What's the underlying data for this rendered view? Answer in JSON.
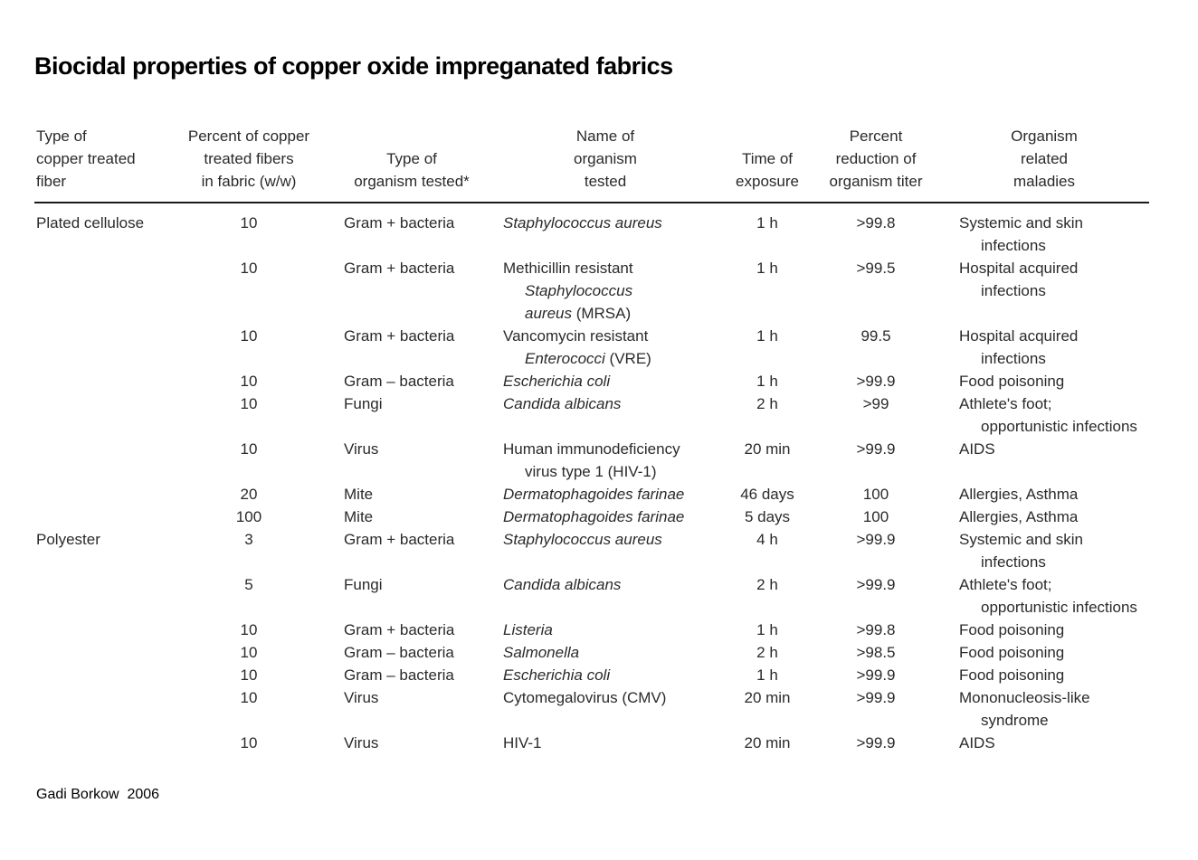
{
  "page": {
    "title": "Biocidal properties of copper oxide impreganated fabrics",
    "credit": "Gadi Borkow  2006"
  },
  "table": {
    "columns": [
      {
        "label": "Type of\ncopper treated\nfiber",
        "align": "left"
      },
      {
        "label": "Percent of copper\ntreated fibers\nin fabric (w/w)",
        "align": "center"
      },
      {
        "label": "Type of\norganism tested*",
        "align": "center"
      },
      {
        "label": "Name of\norganism\ntested",
        "align": "center"
      },
      {
        "label": "Time of\nexposure",
        "align": "center"
      },
      {
        "label": "Percent\nreduction of\norganism titer",
        "align": "center"
      },
      {
        "label": "Organism\nrelated\nmaladies",
        "align": "center"
      }
    ],
    "rows": [
      {
        "fiber": "Plated cellulose",
        "percent_copper": "10",
        "organism_type": "Gram + bacteria",
        "organism_name": [
          [
            {
              "t": "Staphylococcus aureus",
              "i": true
            }
          ]
        ],
        "time": "1 h",
        "reduction": ">99.8",
        "maladies": [
          "Systemic and skin",
          "infections"
        ]
      },
      {
        "fiber": "",
        "percent_copper": "10",
        "organism_type": "Gram + bacteria",
        "organism_name": [
          [
            {
              "t": "Methicillin resistant",
              "i": false
            }
          ],
          [
            {
              "t": "Staphylococcus",
              "i": true
            }
          ],
          [
            {
              "t": "aureus",
              "i": true
            },
            {
              "t": " (MRSA)",
              "i": false
            }
          ]
        ],
        "time": "1 h",
        "reduction": ">99.5",
        "maladies": [
          "Hospital acquired",
          "infections"
        ]
      },
      {
        "fiber": "",
        "percent_copper": "10",
        "organism_type": "Gram + bacteria",
        "organism_name": [
          [
            {
              "t": "Vancomycin resistant",
              "i": false
            }
          ],
          [
            {
              "t": "Enterococci",
              "i": true
            },
            {
              "t": " (VRE)",
              "i": false
            }
          ]
        ],
        "time": "1 h",
        "reduction": "99.5",
        "maladies": [
          "Hospital acquired",
          "infections"
        ]
      },
      {
        "fiber": "",
        "percent_copper": "10",
        "organism_type": "Gram – bacteria",
        "organism_name": [
          [
            {
              "t": "Escherichia coli",
              "i": true
            }
          ]
        ],
        "time": "1 h",
        "reduction": ">99.9",
        "maladies": [
          "Food poisoning"
        ]
      },
      {
        "fiber": "",
        "percent_copper": "10",
        "organism_type": "Fungi",
        "organism_name": [
          [
            {
              "t": "Candida albicans",
              "i": true
            }
          ]
        ],
        "time": "2 h",
        "reduction": ">99",
        "maladies": [
          "Athlete's foot;",
          "opportunistic infections"
        ]
      },
      {
        "fiber": "",
        "percent_copper": "10",
        "organism_type": "Virus",
        "organism_name": [
          [
            {
              "t": "Human immunodeficiency",
              "i": false
            }
          ],
          [
            {
              "t": "virus type 1 (HIV-1)",
              "i": false
            }
          ]
        ],
        "time": "20 min",
        "reduction": ">99.9",
        "maladies": [
          "AIDS"
        ]
      },
      {
        "fiber": "",
        "percent_copper": "20",
        "organism_type": "Mite",
        "organism_name": [
          [
            {
              "t": "Dermatophagoides farinae",
              "i": true
            }
          ]
        ],
        "time": "46 days",
        "reduction": "100",
        "maladies": [
          "Allergies, Asthma"
        ]
      },
      {
        "fiber": "",
        "percent_copper": "100",
        "organism_type": "Mite",
        "organism_name": [
          [
            {
              "t": "Dermatophagoides farinae",
              "i": true
            }
          ]
        ],
        "time": "5 days",
        "reduction": "100",
        "maladies": [
          "Allergies, Asthma"
        ]
      },
      {
        "fiber": "Polyester",
        "percent_copper": "3",
        "organism_type": "Gram + bacteria",
        "organism_name": [
          [
            {
              "t": "Staphylococcus aureus",
              "i": true
            }
          ]
        ],
        "time": "4 h",
        "reduction": ">99.9",
        "maladies": [
          "Systemic and skin",
          "infections"
        ]
      },
      {
        "fiber": "",
        "percent_copper": "5",
        "organism_type": "Fungi",
        "organism_name": [
          [
            {
              "t": "Candida albicans",
              "i": true
            }
          ]
        ],
        "time": "2 h",
        "reduction": ">99.9",
        "maladies": [
          "Athlete's foot;",
          "opportunistic infections"
        ]
      },
      {
        "fiber": "",
        "percent_copper": "10",
        "organism_type": "Gram + bacteria",
        "organism_name": [
          [
            {
              "t": "Listeria",
              "i": true
            }
          ]
        ],
        "time": "1 h",
        "reduction": ">99.8",
        "maladies": [
          "Food poisoning"
        ]
      },
      {
        "fiber": "",
        "percent_copper": "10",
        "organism_type": "Gram – bacteria",
        "organism_name": [
          [
            {
              "t": "Salmonella",
              "i": true
            }
          ]
        ],
        "time": "2 h",
        "reduction": ">98.5",
        "maladies": [
          "Food poisoning"
        ]
      },
      {
        "fiber": "",
        "percent_copper": "10",
        "organism_type": "Gram – bacteria",
        "organism_name": [
          [
            {
              "t": "Escherichia coli",
              "i": true
            }
          ]
        ],
        "time": "1 h",
        "reduction": ">99.9",
        "maladies": [
          "Food poisoning"
        ]
      },
      {
        "fiber": "",
        "percent_copper": "10",
        "organism_type": "Virus",
        "organism_name": [
          [
            {
              "t": "Cytomegalovirus (CMV)",
              "i": false
            }
          ]
        ],
        "time": "20 min",
        "reduction": ">99.9",
        "maladies": [
          "Mononucleosis-like",
          "syndrome"
        ]
      },
      {
        "fiber": "",
        "percent_copper": "10",
        "organism_type": "Virus",
        "organism_name": [
          [
            {
              "t": "HIV-1",
              "i": false
            }
          ]
        ],
        "time": "20 min",
        "reduction": ">99.9",
        "maladies": [
          "AIDS"
        ]
      }
    ]
  }
}
